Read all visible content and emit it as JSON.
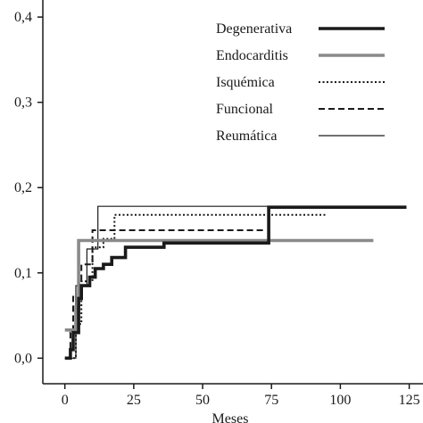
{
  "chart_data": {
    "type": "line",
    "step": true,
    "xlabel": "Meses",
    "ylabel": "",
    "xlim": [
      -8,
      130
    ],
    "ylim": [
      -0.03,
      0.42
    ],
    "x_ticks": [
      0,
      25,
      50,
      75,
      100,
      125
    ],
    "x_tick_labels": [
      "0",
      "25",
      "50",
      "75",
      "100",
      "125"
    ],
    "y_ticks": [
      0.0,
      0.1,
      0.2,
      0.3,
      0.4
    ],
    "y_tick_labels": [
      "0,0",
      "0,1",
      "0,2",
      "0,3",
      "0,4"
    ],
    "legend_position": "top-right",
    "series": [
      {
        "name": "Degenerativa",
        "color": "#1a1a1a",
        "style": "solid-thick",
        "points": [
          [
            0,
            0.0
          ],
          [
            2,
            0.0
          ],
          [
            2,
            0.01
          ],
          [
            3,
            0.01
          ],
          [
            3,
            0.03
          ],
          [
            5,
            0.03
          ],
          [
            5,
            0.07
          ],
          [
            6,
            0.07
          ],
          [
            6,
            0.085
          ],
          [
            9,
            0.085
          ],
          [
            9,
            0.095
          ],
          [
            11,
            0.095
          ],
          [
            11,
            0.105
          ],
          [
            14,
            0.105
          ],
          [
            14,
            0.11
          ],
          [
            17,
            0.11
          ],
          [
            17,
            0.118
          ],
          [
            22,
            0.118
          ],
          [
            22,
            0.13
          ],
          [
            36,
            0.13
          ],
          [
            36,
            0.135
          ],
          [
            74,
            0.135
          ],
          [
            74,
            0.177
          ],
          [
            124,
            0.177
          ]
        ]
      },
      {
        "name": "Endocarditis",
        "color": "#8a8a8a",
        "style": "solid-thick",
        "points": [
          [
            0,
            0.033
          ],
          [
            4,
            0.033
          ],
          [
            4,
            0.06
          ],
          [
            5,
            0.06
          ],
          [
            5,
            0.138
          ],
          [
            112,
            0.138
          ]
        ]
      },
      {
        "name": "Isquémica",
        "color": "#1a1a1a",
        "style": "dotted",
        "points": [
          [
            3,
            0.0
          ],
          [
            4,
            0.0
          ],
          [
            4,
            0.04
          ],
          [
            6,
            0.04
          ],
          [
            6,
            0.09
          ],
          [
            10,
            0.09
          ],
          [
            10,
            0.13
          ],
          [
            14,
            0.13
          ],
          [
            14,
            0.14
          ],
          [
            18,
            0.14
          ],
          [
            18,
            0.168
          ],
          [
            95,
            0.168
          ]
        ]
      },
      {
        "name": "Funcional",
        "color": "#1a1a1a",
        "style": "dashed",
        "points": [
          [
            2,
            0.0
          ],
          [
            2,
            0.03
          ],
          [
            3,
            0.03
          ],
          [
            3,
            0.072
          ],
          [
            6,
            0.072
          ],
          [
            6,
            0.11
          ],
          [
            10,
            0.11
          ],
          [
            10,
            0.15
          ],
          [
            17,
            0.15
          ],
          [
            17,
            0.15
          ],
          [
            72,
            0.15
          ]
        ]
      },
      {
        "name": "Reumática",
        "color": "#1a1a1a",
        "style": "solid-thin",
        "points": [
          [
            0,
            0.0
          ],
          [
            4,
            0.0
          ],
          [
            4,
            0.085
          ],
          [
            8,
            0.085
          ],
          [
            8,
            0.128
          ],
          [
            12,
            0.128
          ],
          [
            12,
            0.178
          ],
          [
            112,
            0.178
          ]
        ]
      }
    ]
  }
}
